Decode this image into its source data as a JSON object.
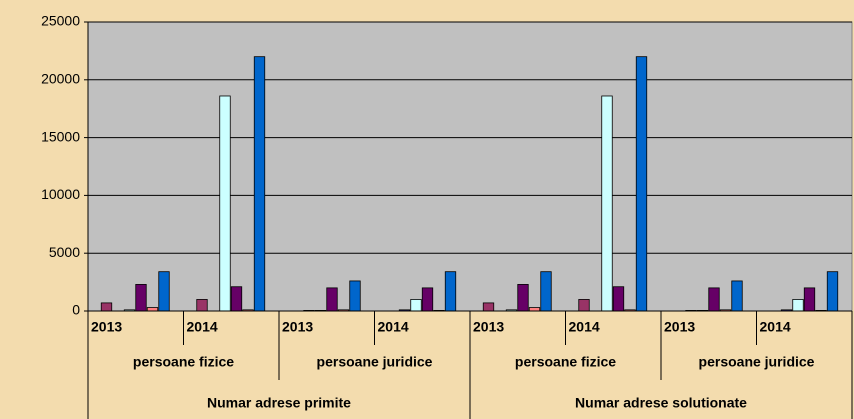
{
  "chart_data": {
    "type": "bar",
    "categories": [
      "2013",
      "2014",
      "2013",
      "2014",
      "2013",
      "2014",
      "2013",
      "2014"
    ],
    "category_groups": [
      "persoane fizice",
      "persoane juridice",
      "persoane fizice",
      "persoane juridice"
    ],
    "category_supergroups": [
      "Numar adrese primite",
      "Numar adrese solutionate"
    ],
    "series": [
      {
        "color": "#993366",
        "values": [
          700,
          1000,
          0,
          0,
          700,
          1000,
          0,
          0
        ]
      },
      {
        "color": "#333399",
        "values": [
          0,
          0,
          50,
          100,
          0,
          0,
          50,
          100
        ]
      },
      {
        "color": "#ccffff",
        "values": [
          100,
          18600,
          50,
          1000,
          100,
          18600,
          50,
          1000
        ]
      },
      {
        "color": "#660066",
        "values": [
          2300,
          2100,
          2000,
          2000,
          2300,
          2100,
          2000,
          2000
        ]
      },
      {
        "color": "#ff8080",
        "values": [
          300,
          100,
          100,
          50,
          300,
          100,
          100,
          50
        ]
      },
      {
        "color": "#0066cc",
        "values": [
          3400,
          22000,
          2600,
          3400,
          3400,
          22000,
          2600,
          3400
        ]
      }
    ],
    "ylim": [
      0,
      25000
    ],
    "yticks": [
      0,
      5000,
      10000,
      15000,
      20000,
      25000
    ],
    "grid": true
  }
}
